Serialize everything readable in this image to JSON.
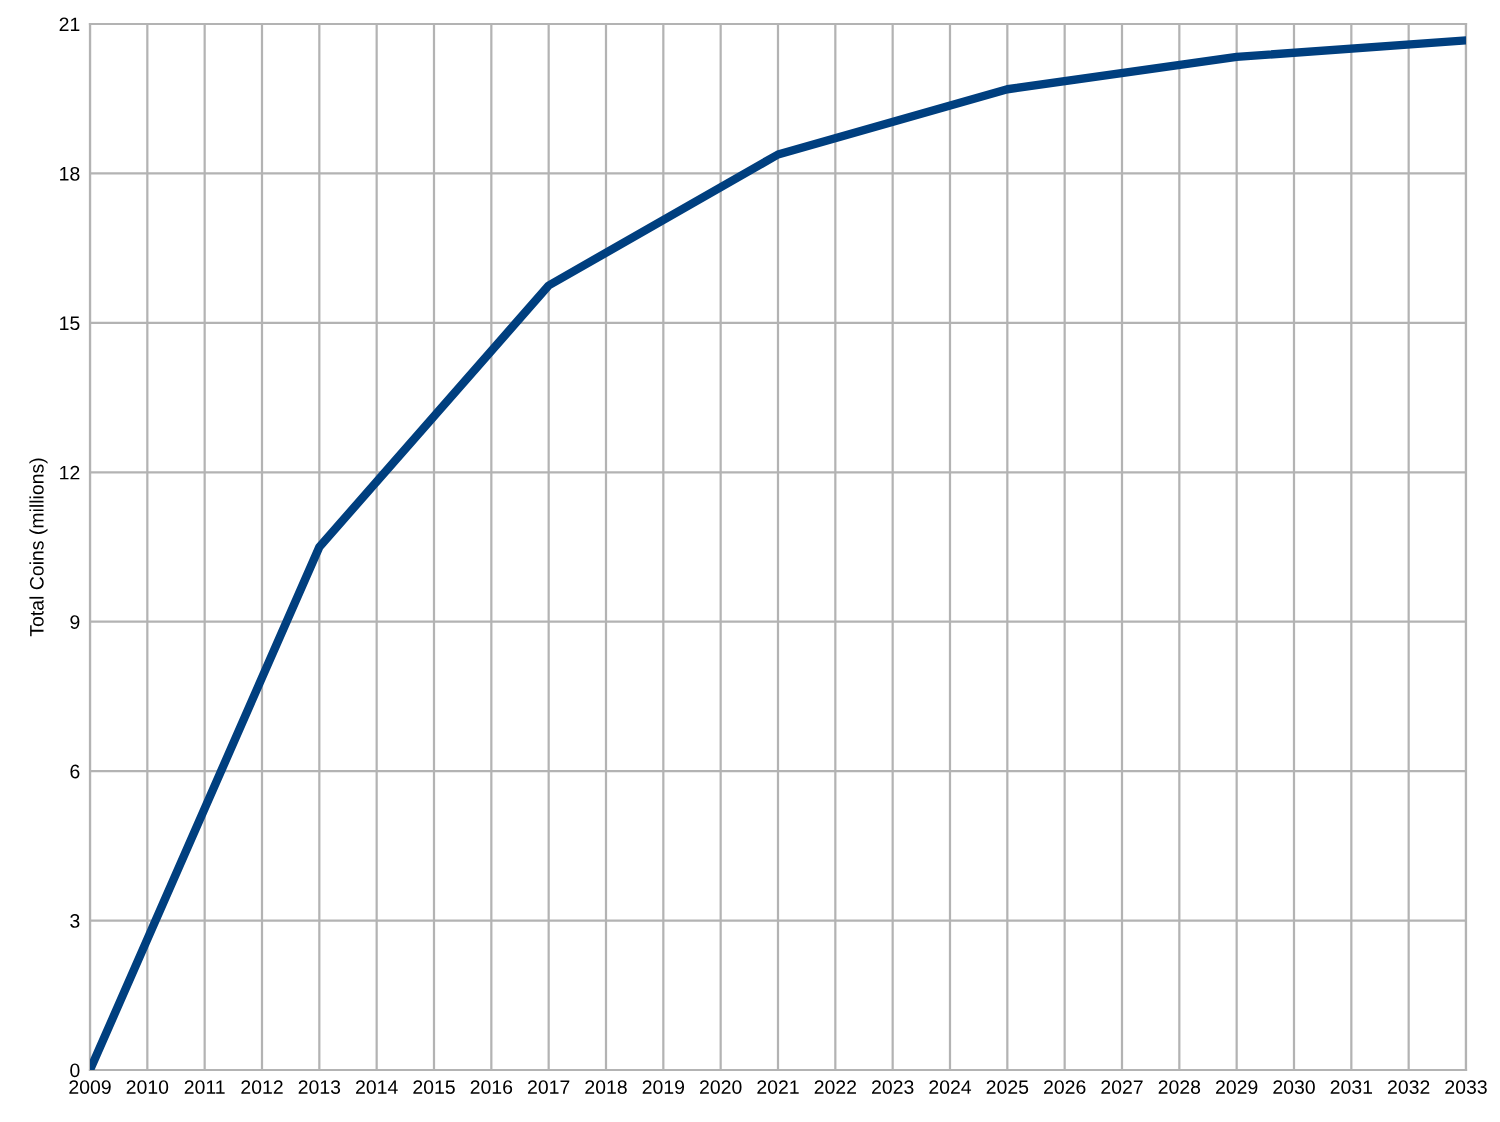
{
  "chart_data": {
    "type": "line",
    "ylabel": "Total Coins (millions)",
    "x": [
      2009,
      2013,
      2017,
      2021,
      2025,
      2029,
      2033
    ],
    "series": [
      {
        "color": "#003f7f",
        "values": [
          0,
          10.5,
          15.75,
          18.38,
          19.69,
          20.34,
          20.67
        ]
      }
    ],
    "xlim": [
      2009,
      2033
    ],
    "xticks": [
      2009,
      2010,
      2011,
      2012,
      2013,
      2014,
      2015,
      2016,
      2017,
      2018,
      2019,
      2020,
      2021,
      2022,
      2023,
      2024,
      2025,
      2026,
      2027,
      2028,
      2029,
      2030,
      2031,
      2032,
      2033
    ],
    "ylim": [
      0,
      21
    ],
    "yticks": [
      0,
      3,
      6,
      9,
      12,
      15,
      18,
      21
    ],
    "grid": true,
    "legend": false,
    "marker": "none",
    "line_style": "solid"
  }
}
